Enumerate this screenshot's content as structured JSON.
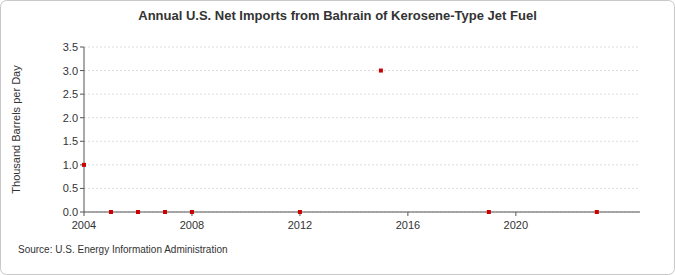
{
  "chart_data": {
    "type": "scatter",
    "title": "Annual U.S. Net Imports from Bahrain of Kerosene-Type Jet Fuel",
    "y_label": "Thousand Barrels per Day",
    "source": "Source: U.S. Energy Information Administration",
    "x": [
      2004,
      2005,
      2006,
      2007,
      2008,
      2012,
      2015,
      2019,
      2023
    ],
    "values": [
      1,
      0,
      0,
      0,
      0,
      0,
      3,
      0,
      0
    ],
    "color": "#cc0000",
    "marker": "square",
    "xlim": [
      2004,
      2024.6
    ],
    "xticks": [
      2004,
      2008,
      2012,
      2016,
      2020
    ],
    "ylim": [
      0,
      3.5
    ],
    "yticks": [
      {
        "value": 0,
        "label": "0.0"
      },
      {
        "value": 0.5,
        "label": "0.5"
      },
      {
        "value": 1,
        "label": "1.0"
      },
      {
        "value": 1.5,
        "label": "1.5"
      },
      {
        "value": 2,
        "label": "2.0"
      },
      {
        "value": 2.5,
        "label": "2.5"
      },
      {
        "value": 3,
        "label": "3.0"
      },
      {
        "value": 3.5,
        "label": "3.5"
      }
    ],
    "grid": true
  }
}
